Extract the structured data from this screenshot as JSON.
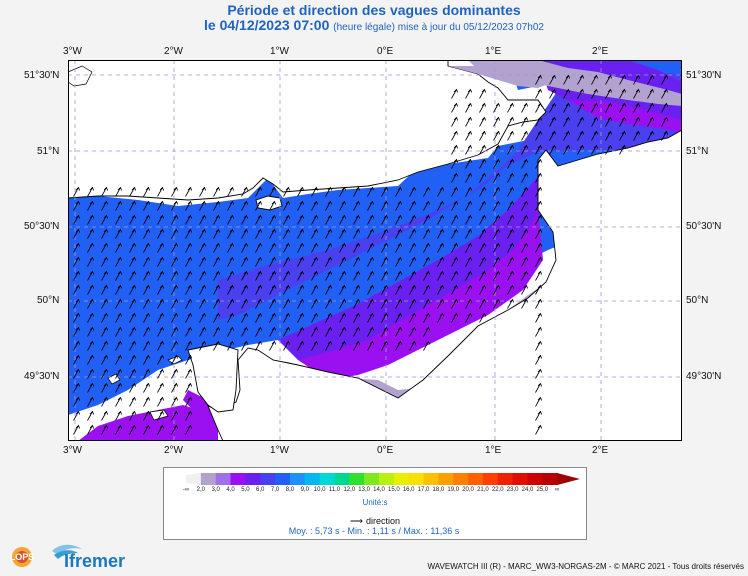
{
  "header": {
    "title": "Période et direction des vagues dominantes",
    "date_line": "le 04/12/2023 07:00",
    "update_note": "(heure légale) mise à jour du 05/12/2023 07h02"
  },
  "axes": {
    "lon_labels": [
      "3°W",
      "2°W",
      "1°W",
      "0°E",
      "1°E",
      "2°E"
    ],
    "lat_labels": [
      "51°30'N",
      "51°N",
      "50°30'N",
      "50°N",
      "49°30'N"
    ]
  },
  "legend": {
    "bins": [
      {
        "label": "-∞",
        "color": "#f0f0f0"
      },
      {
        "label": "2,0",
        "color": "#b2a2cf"
      },
      {
        "label": "3,0",
        "color": "#a070e8"
      },
      {
        "label": "4,0",
        "color": "#9a10f0"
      },
      {
        "label": "5,0",
        "color": "#6a20f0"
      },
      {
        "label": "6,0",
        "color": "#4a40f0"
      },
      {
        "label": "7,0",
        "color": "#2060f5"
      },
      {
        "label": "8,0",
        "color": "#1e90ff"
      },
      {
        "label": "9,0",
        "color": "#00b8f0"
      },
      {
        "label": "10,0",
        "color": "#00d8d8"
      },
      {
        "label": "11,0",
        "color": "#00d890"
      },
      {
        "label": "12,0",
        "color": "#30e030"
      },
      {
        "label": "13,0",
        "color": "#80e820"
      },
      {
        "label": "14,0",
        "color": "#b8f010"
      },
      {
        "label": "15,0",
        "color": "#e8f000"
      },
      {
        "label": "16,0",
        "color": "#f8e000"
      },
      {
        "label": "17,0",
        "color": "#ffc000"
      },
      {
        "label": "18,0",
        "color": "#ffa000"
      },
      {
        "label": "19,0",
        "color": "#ff8000"
      },
      {
        "label": "20,0",
        "color": "#ff6000"
      },
      {
        "label": "21,0",
        "color": "#ff4000"
      },
      {
        "label": "22,0",
        "color": "#f02000"
      },
      {
        "label": "23,0",
        "color": "#e01000"
      },
      {
        "label": "24,0",
        "color": "#d00000"
      },
      {
        "label": "25,0",
        "color": "#b80000"
      },
      {
        "label": "∞",
        "color": "#a00000"
      }
    ],
    "unit_label": "Unité:s",
    "direction_label": "direction"
  },
  "stats": {
    "line": "Moy. : 5,73 s   -   Min. : 1,11 s / Max. : 11,36 s"
  },
  "footer": {
    "credit": "WAVEWATCH III (R) - MARC_WW3-NORGAS-2M - © MARC 2021 - Tous droits réservés"
  },
  "logos": {
    "lops": "LOPS",
    "ifremer": "Ifremer"
  },
  "colors": {
    "title": "#1f63c0",
    "land": "#ffffff",
    "grid": "#9090c0"
  }
}
